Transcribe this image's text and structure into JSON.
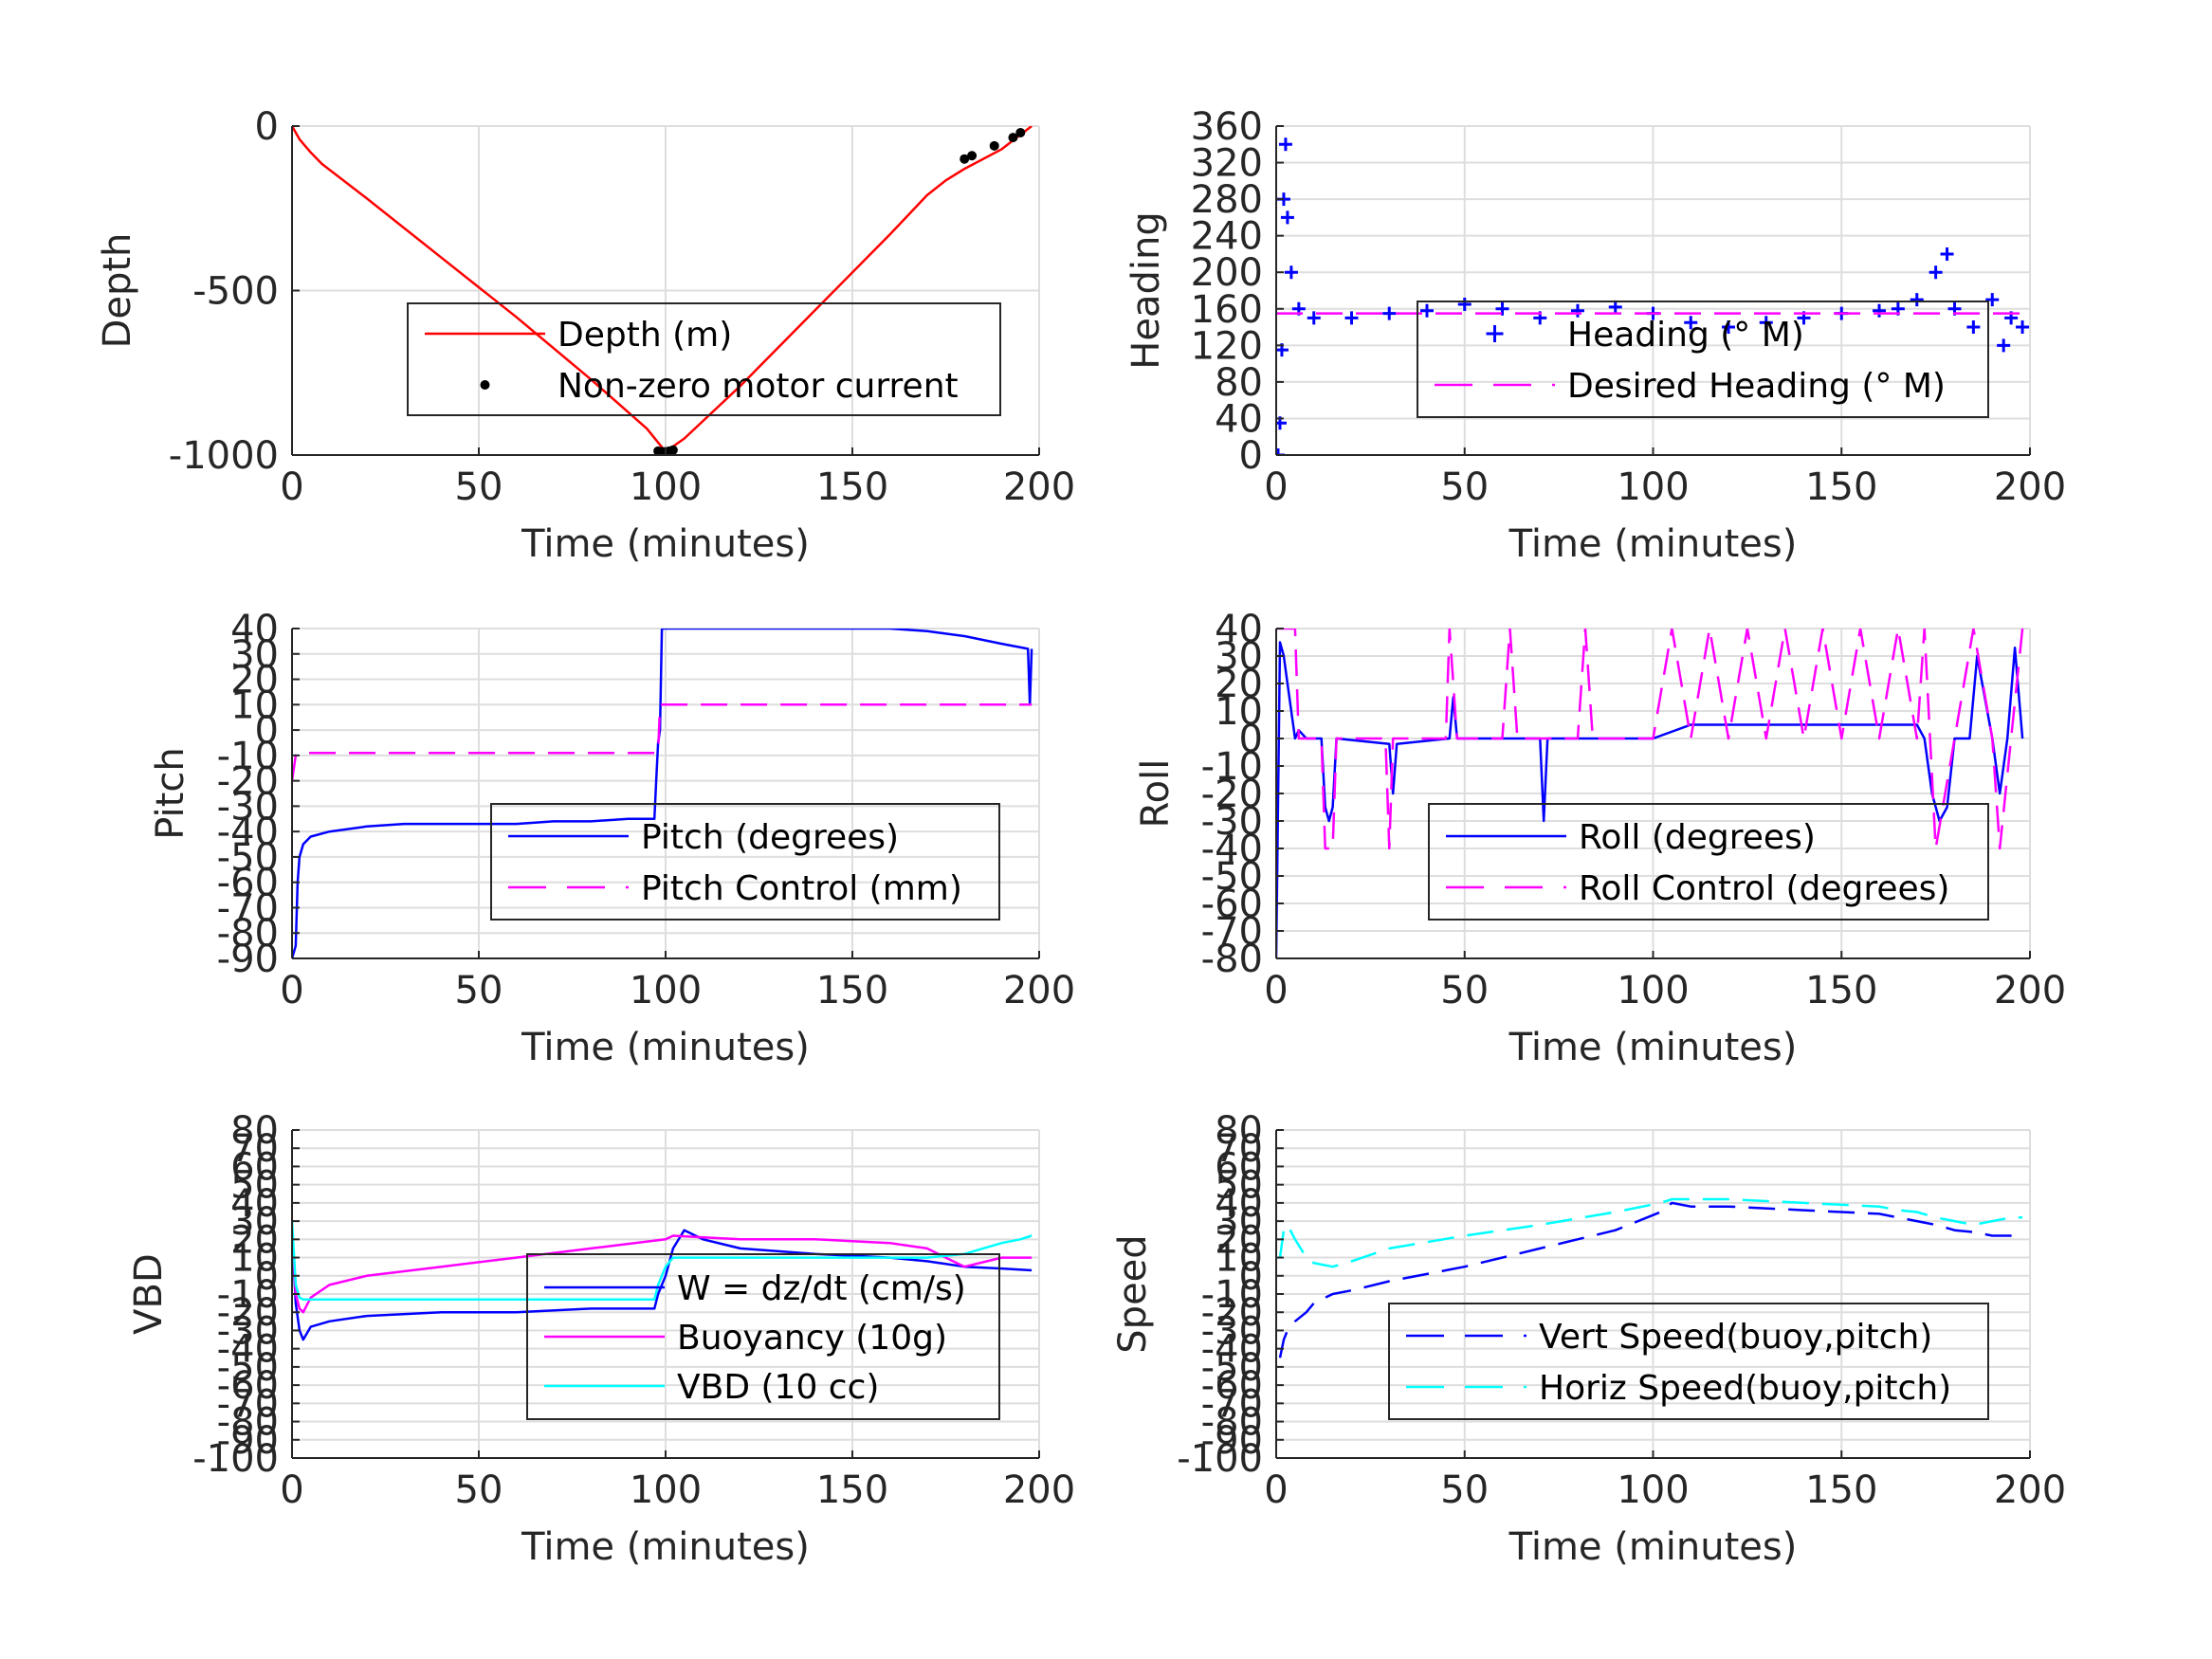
{
  "chart_data": [
    {
      "type": "line",
      "xlabel": "Time (minutes)",
      "ylabel": "Depth",
      "xlim": [
        0,
        200
      ],
      "ylim": [
        -1000,
        0
      ],
      "xticks": [
        0,
        50,
        100,
        150,
        200
      ],
      "yticks": [
        -1000,
        -500,
        0
      ],
      "grid": true,
      "legend": "center-right",
      "series": [
        {
          "name": "Depth (m)",
          "style": "solid",
          "color": "#ff0000",
          "marker": "none",
          "x": [
            0,
            2,
            5,
            8,
            20,
            40,
            60,
            80,
            95,
            100,
            105,
            120,
            140,
            160,
            170,
            175,
            180,
            190,
            198
          ],
          "y": [
            0,
            -40,
            -80,
            -115,
            -220,
            -400,
            -580,
            -770,
            -920,
            -990,
            -950,
            -790,
            -560,
            -330,
            -210,
            -165,
            -130,
            -70,
            0
          ]
        },
        {
          "name": "Non-zero motor current",
          "style": "none",
          "color": "#000000",
          "marker": "dot",
          "x": [
            98,
            99,
            100,
            101,
            102,
            180,
            182,
            188,
            193,
            195
          ],
          "y": [
            -988,
            -990,
            -990,
            -988,
            -985,
            -100,
            -90,
            -60,
            -35,
            -20
          ]
        }
      ]
    },
    {
      "type": "line",
      "xlabel": "Time (minutes)",
      "ylabel": "Heading",
      "xlim": [
        0,
        200
      ],
      "ylim": [
        0,
        360
      ],
      "xticks": [
        0,
        50,
        100,
        150,
        200
      ],
      "yticks": [
        0,
        40,
        80,
        120,
        160,
        200,
        240,
        280,
        320,
        360
      ],
      "grid": true,
      "legend": "center-right",
      "series": [
        {
          "name": "Heading (° M)",
          "style": "none",
          "color": "#0000ff",
          "marker": "plus",
          "x": [
            0.5,
            1,
            1.5,
            2,
            2.5,
            3,
            4,
            6,
            10,
            20,
            30,
            40,
            50,
            60,
            70,
            80,
            90,
            100,
            110,
            120,
            130,
            140,
            150,
            160,
            165,
            170,
            175,
            178,
            180,
            185,
            190,
            193,
            195,
            198
          ],
          "y": [
            0,
            35,
            115,
            280,
            340,
            260,
            200,
            160,
            150,
            150,
            155,
            158,
            165,
            160,
            150,
            158,
            162,
            155,
            145,
            140,
            145,
            150,
            155,
            158,
            160,
            170,
            200,
            220,
            160,
            140,
            170,
            120,
            150,
            140
          ]
        },
        {
          "name": "Desired Heading (° M)",
          "style": "dashed",
          "color": "#ff00ff",
          "marker": "none",
          "x": [
            0,
            200
          ],
          "y": [
            155,
            155
          ]
        }
      ]
    },
    {
      "type": "line",
      "xlabel": "Time (minutes)",
      "ylabel": "Pitch",
      "xlim": [
        0,
        200
      ],
      "ylim": [
        -90,
        40
      ],
      "xticks": [
        0,
        50,
        100,
        150,
        200
      ],
      "yticks": [
        -90,
        -80,
        -70,
        -60,
        -50,
        -40,
        -30,
        -20,
        -10,
        0,
        10,
        20,
        30,
        40
      ],
      "grid": true,
      "legend": "center-right",
      "series": [
        {
          "name": "Pitch (degrees)",
          "style": "solid",
          "color": "#0000ff",
          "marker": "none",
          "x": [
            0,
            1,
            1.5,
            2,
            3,
            5,
            10,
            20,
            30,
            40,
            50,
            60,
            70,
            80,
            90,
            97,
            97.5,
            98,
            98.5,
            99,
            100,
            110,
            120,
            130,
            140,
            150,
            160,
            170,
            180,
            190,
            197,
            197.5,
            198
          ],
          "y": [
            -90,
            -85,
            -60,
            -50,
            -45,
            -42,
            -40,
            -38,
            -37,
            -37,
            -37,
            -37,
            -36,
            -36,
            -35,
            -35,
            -20,
            -5,
            0,
            40,
            40,
            40,
            40,
            40,
            40,
            40,
            40,
            39,
            37,
            34,
            32,
            10,
            32
          ]
        },
        {
          "name": "Pitch Control (mm)",
          "style": "dashed",
          "color": "#ff00ff",
          "marker": "none",
          "x": [
            0,
            1,
            2,
            3,
            50,
            97,
            98,
            98.5,
            99,
            150,
            197,
            198
          ],
          "y": [
            -20,
            -10,
            -9,
            -9,
            -9,
            -9,
            -9,
            10,
            10,
            10,
            10,
            10
          ]
        }
      ]
    },
    {
      "type": "line",
      "xlabel": "Time (minutes)",
      "ylabel": "Roll",
      "xlim": [
        0,
        200
      ],
      "ylim": [
        -80,
        40
      ],
      "xticks": [
        0,
        50,
        100,
        150,
        200
      ],
      "yticks": [
        -80,
        -70,
        -60,
        -50,
        -40,
        -30,
        -20,
        -10,
        0,
        10,
        20,
        30,
        40
      ],
      "grid": true,
      "legend": "center-right",
      "series": [
        {
          "name": "Roll (degrees)",
          "style": "solid",
          "color": "#0000ff",
          "marker": "none",
          "x": [
            0,
            1,
            2,
            3,
            5,
            6,
            8,
            12,
            13,
            14,
            15,
            16,
            30,
            31,
            32,
            46,
            47,
            48,
            70,
            71,
            72,
            100,
            110,
            120,
            150,
            170,
            172,
            174,
            176,
            178,
            180,
            184,
            186,
            190,
            192,
            194,
            196,
            198
          ],
          "y": [
            -80,
            35,
            30,
            20,
            0,
            3,
            0,
            0,
            -25,
            -30,
            -25,
            0,
            -2,
            -20,
            -2,
            0,
            15,
            0,
            0,
            -30,
            0,
            0,
            5,
            5,
            5,
            5,
            0,
            -20,
            -30,
            -25,
            0,
            0,
            30,
            0,
            -20,
            0,
            33,
            0
          ]
        },
        {
          "name": "Roll Control (degrees)",
          "style": "dashed",
          "color": "#ff00ff",
          "marker": "none",
          "x": [
            0,
            5,
            6,
            8,
            12,
            13,
            15,
            16,
            29,
            30,
            31,
            45,
            46,
            48,
            60,
            62,
            64,
            80,
            82,
            84,
            100,
            105,
            110,
            115,
            120,
            125,
            130,
            135,
            140,
            145,
            150,
            155,
            160,
            165,
            170,
            172,
            175,
            180,
            185,
            190,
            192,
            195,
            198
          ],
          "y": [
            40,
            40,
            0,
            0,
            0,
            -40,
            -40,
            0,
            0,
            -40,
            0,
            0,
            40,
            0,
            0,
            40,
            0,
            0,
            40,
            0,
            0,
            40,
            0,
            40,
            0,
            40,
            0,
            40,
            0,
            40,
            0,
            40,
            0,
            40,
            0,
            40,
            -40,
            0,
            40,
            0,
            -40,
            0,
            40
          ]
        }
      ]
    },
    {
      "type": "line",
      "xlabel": "Time (minutes)",
      "ylabel": "VBD",
      "xlim": [
        0,
        200
      ],
      "ylim": [
        -100,
        80
      ],
      "xticks": [
        0,
        50,
        100,
        150,
        200
      ],
      "yticks": [
        -100,
        -90,
        -80,
        -70,
        -60,
        -50,
        -40,
        -30,
        -20,
        -10,
        0,
        10,
        20,
        30,
        40,
        50,
        60,
        70,
        80
      ],
      "grid": true,
      "legend": "center-right",
      "series": [
        {
          "name": "W = dz/dt (cm/s)",
          "style": "solid",
          "color": "#0000ff",
          "marker": "none",
          "x": [
            0,
            1,
            2,
            3,
            5,
            10,
            20,
            40,
            60,
            80,
            90,
            97,
            98,
            100,
            102,
            105,
            110,
            120,
            140,
            160,
            170,
            180,
            190,
            198
          ],
          "y": [
            25,
            -15,
            -30,
            -35,
            -28,
            -25,
            -22,
            -20,
            -20,
            -18,
            -18,
            -18,
            -10,
            0,
            15,
            25,
            20,
            15,
            12,
            10,
            8,
            5,
            4,
            3
          ]
        },
        {
          "name": "Buoyancy (10g)",
          "style": "solid",
          "color": "#ff00ff",
          "marker": "none",
          "x": [
            0,
            1,
            2,
            3,
            5,
            10,
            20,
            40,
            60,
            80,
            100,
            102,
            120,
            140,
            160,
            170,
            175,
            180,
            190,
            198
          ],
          "y": [
            25,
            -10,
            -18,
            -20,
            -12,
            -5,
            0,
            5,
            10,
            15,
            20,
            22,
            20,
            20,
            18,
            15,
            10,
            5,
            10,
            10
          ]
        },
        {
          "name": "VBD (10 cc)",
          "style": "solid",
          "color": "#00ffff",
          "marker": "none",
          "x": [
            0,
            1,
            2,
            3,
            5,
            10,
            50,
            97,
            98,
            100,
            102,
            150,
            170,
            180,
            185,
            190,
            195,
            198
          ],
          "y": [
            30,
            -5,
            -12,
            -13,
            -13,
            -13,
            -13,
            -13,
            -5,
            5,
            10,
            10,
            10,
            12,
            15,
            18,
            20,
            22
          ]
        }
      ]
    },
    {
      "type": "line",
      "xlabel": "Time (minutes)",
      "ylabel": "Speed",
      "xlim": [
        0,
        200
      ],
      "ylim": [
        -100,
        80
      ],
      "xticks": [
        0,
        50,
        100,
        150,
        200
      ],
      "yticks": [
        -100,
        -90,
        -80,
        -70,
        -60,
        -50,
        -40,
        -30,
        -20,
        -10,
        0,
        10,
        20,
        30,
        40,
        50,
        60,
        70,
        80
      ],
      "grid": true,
      "legend": "center-right",
      "series": [
        {
          "name": "Vert Speed(buoy,pitch)",
          "style": "dashed",
          "color": "#0000ff",
          "marker": "none",
          "x": [
            1,
            2,
            3,
            5,
            8,
            10,
            15,
            20,
            30,
            50,
            70,
            90,
            102,
            105,
            110,
            120,
            140,
            160,
            165,
            170,
            175,
            180,
            185,
            190,
            195,
            198
          ],
          "y": [
            -45,
            -35,
            -30,
            -25,
            -20,
            -15,
            -10,
            -8,
            -3,
            5,
            15,
            25,
            35,
            40,
            38,
            38,
            36,
            34,
            32,
            30,
            28,
            25,
            24,
            22,
            22,
            22
          ]
        },
        {
          "name": "Horiz Speed(buoy,pitch)",
          "style": "dashed",
          "color": "#00ffff",
          "marker": "none",
          "x": [
            1,
            2,
            3,
            5,
            8,
            10,
            15,
            20,
            30,
            50,
            70,
            90,
            102,
            105,
            110,
            120,
            140,
            160,
            165,
            170,
            175,
            180,
            185,
            190,
            195,
            198
          ],
          "y": [
            10,
            25,
            28,
            20,
            10,
            7,
            5,
            8,
            15,
            22,
            28,
            35,
            40,
            42,
            42,
            42,
            40,
            38,
            36,
            35,
            32,
            30,
            28,
            30,
            32,
            32
          ]
        }
      ]
    }
  ]
}
